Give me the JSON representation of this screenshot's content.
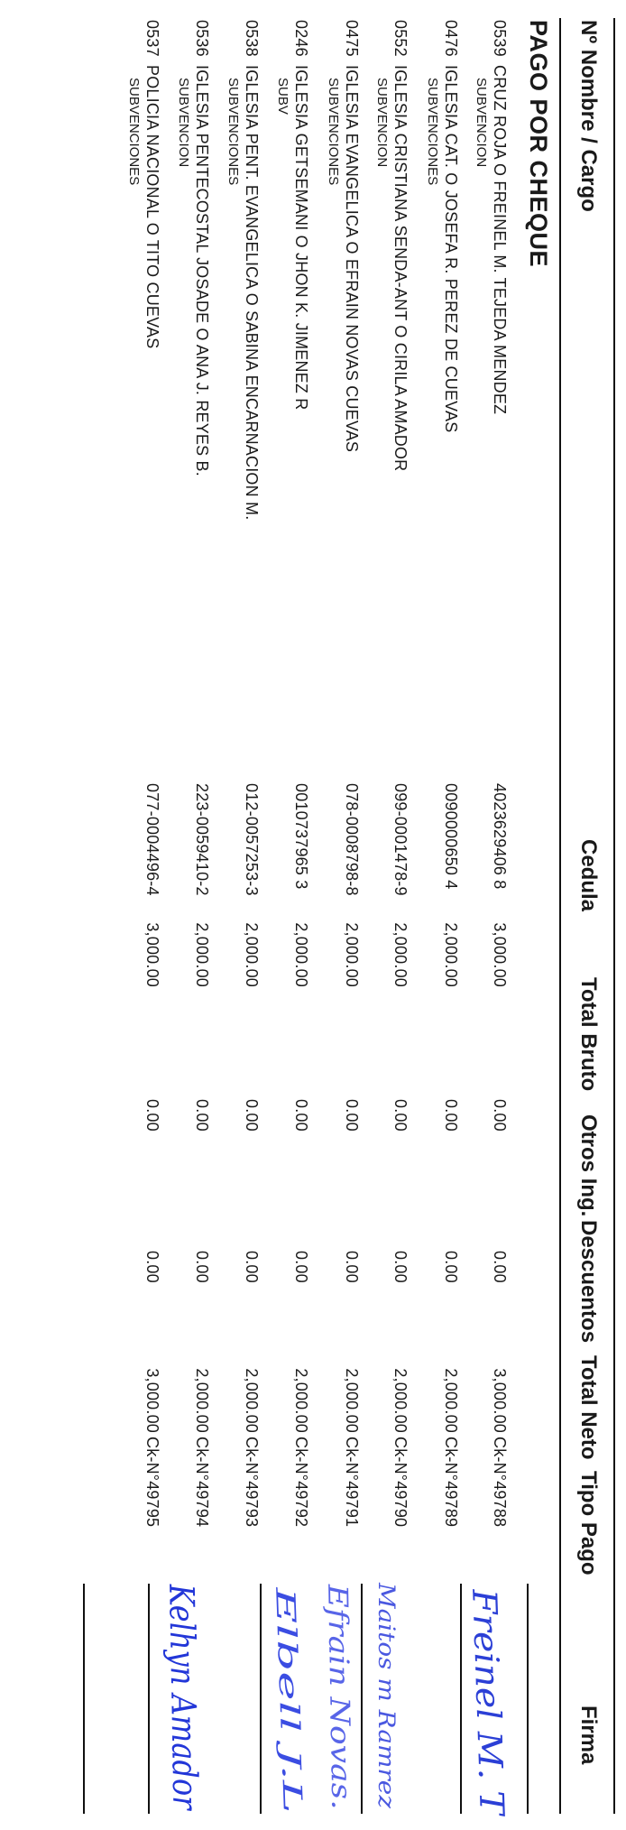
{
  "headers": {
    "no_nombre": "Nº  Nombre / Cargo",
    "cedula": "Cedula",
    "total_bruto": "Total Bruto",
    "otros_ing": "Otros Ing.",
    "descuentos": "Descuentos",
    "total_neto": "Total Neto",
    "tipo_pago": "Tipo Pago",
    "firma": "Firma"
  },
  "section_title": "PAGO POR CHEQUE",
  "rows": [
    {
      "no": "0539",
      "nombre": "CRUZ ROJA O FREINEL M. TEJEDA MENDEZ",
      "cargo": "SUBVENCION",
      "cedula": "4023629406 8",
      "bruto": "3,000.00",
      "otros": "0.00",
      "desc": "0.00",
      "neto": "3,000.00",
      "tipo": "Ck-N°49788"
    },
    {
      "no": "0476",
      "nombre": "IGLESIA CAT. O JOSEFA R. PEREZ DE CUEVAS",
      "cargo": "SUBVENCIONES",
      "cedula": "0090000650 4",
      "bruto": "2,000.00",
      "otros": "0.00",
      "desc": "0.00",
      "neto": "2,000.00",
      "tipo": "Ck-N°49789"
    },
    {
      "no": "0552",
      "nombre": "IGLESIA CRISTIANA SENDA-ANT O CIRILA AMADOR",
      "cargo": "SUBVENCION",
      "cedula": "099-0001478-9",
      "bruto": "2,000.00",
      "otros": "0.00",
      "desc": "0.00",
      "neto": "2,000.00",
      "tipo": "Ck-N°49790"
    },
    {
      "no": "0475",
      "nombre": "IGLESIA EVANGELICA O EFRAIN NOVAS CUEVAS",
      "cargo": "SUBVENCIONES",
      "cedula": "078-0008798-8",
      "bruto": "2,000.00",
      "otros": "0.00",
      "desc": "0.00",
      "neto": "2,000.00",
      "tipo": "Ck-N°49791"
    },
    {
      "no": "0246",
      "nombre": "IGLESIA GETSEMANI O JHON K. JIMENEZ R",
      "cargo": "SUBV",
      "cedula": "0010737965 3",
      "bruto": "2,000.00",
      "otros": "0.00",
      "desc": "0.00",
      "neto": "2,000.00",
      "tipo": "Ck-N°49792"
    },
    {
      "no": "0538",
      "nombre": "IGLESIA PENT. EVANGELICA O SABINA ENCARNACION M.",
      "cargo": "SUBVENCIONES",
      "cedula": "012-0057253-3",
      "bruto": "2,000.00",
      "otros": "0.00",
      "desc": "0.00",
      "neto": "2,000.00",
      "tipo": "Ck-N°49793"
    },
    {
      "no": "0536",
      "nombre": "IGLESIA PENTECOSTAL JOSADE O ANA J. REYES B.",
      "cargo": "SUBVENCION",
      "cedula": "223-0059410-2",
      "bruto": "2,000.00",
      "otros": "0.00",
      "desc": "0.00",
      "neto": "2,000.00",
      "tipo": "Ck-N°49794"
    },
    {
      "no": "0537",
      "nombre": "POLICIA NACIONAL O TITO CUEVAS",
      "cargo": "SUBVENCIONES",
      "cedula": "077-0004496-4",
      "bruto": "3,000.00",
      "otros": "0.00",
      "desc": "0.00",
      "neto": "3,000.00",
      "tipo": "Ck-N°49795"
    }
  ],
  "signatures": [
    {
      "text": "Freinel M. T",
      "color": "#2b3fd6"
    },
    {
      "text": "Maitos m Ramrez",
      "color": "#4a58e0"
    },
    {
      "text": "Efrain Novas.",
      "color": "#5865e8"
    },
    {
      "text": "Elbell J.L",
      "color": "#3b4de2"
    },
    {
      "text": "Kelhyn Amador",
      "color": "#2236d8"
    }
  ]
}
